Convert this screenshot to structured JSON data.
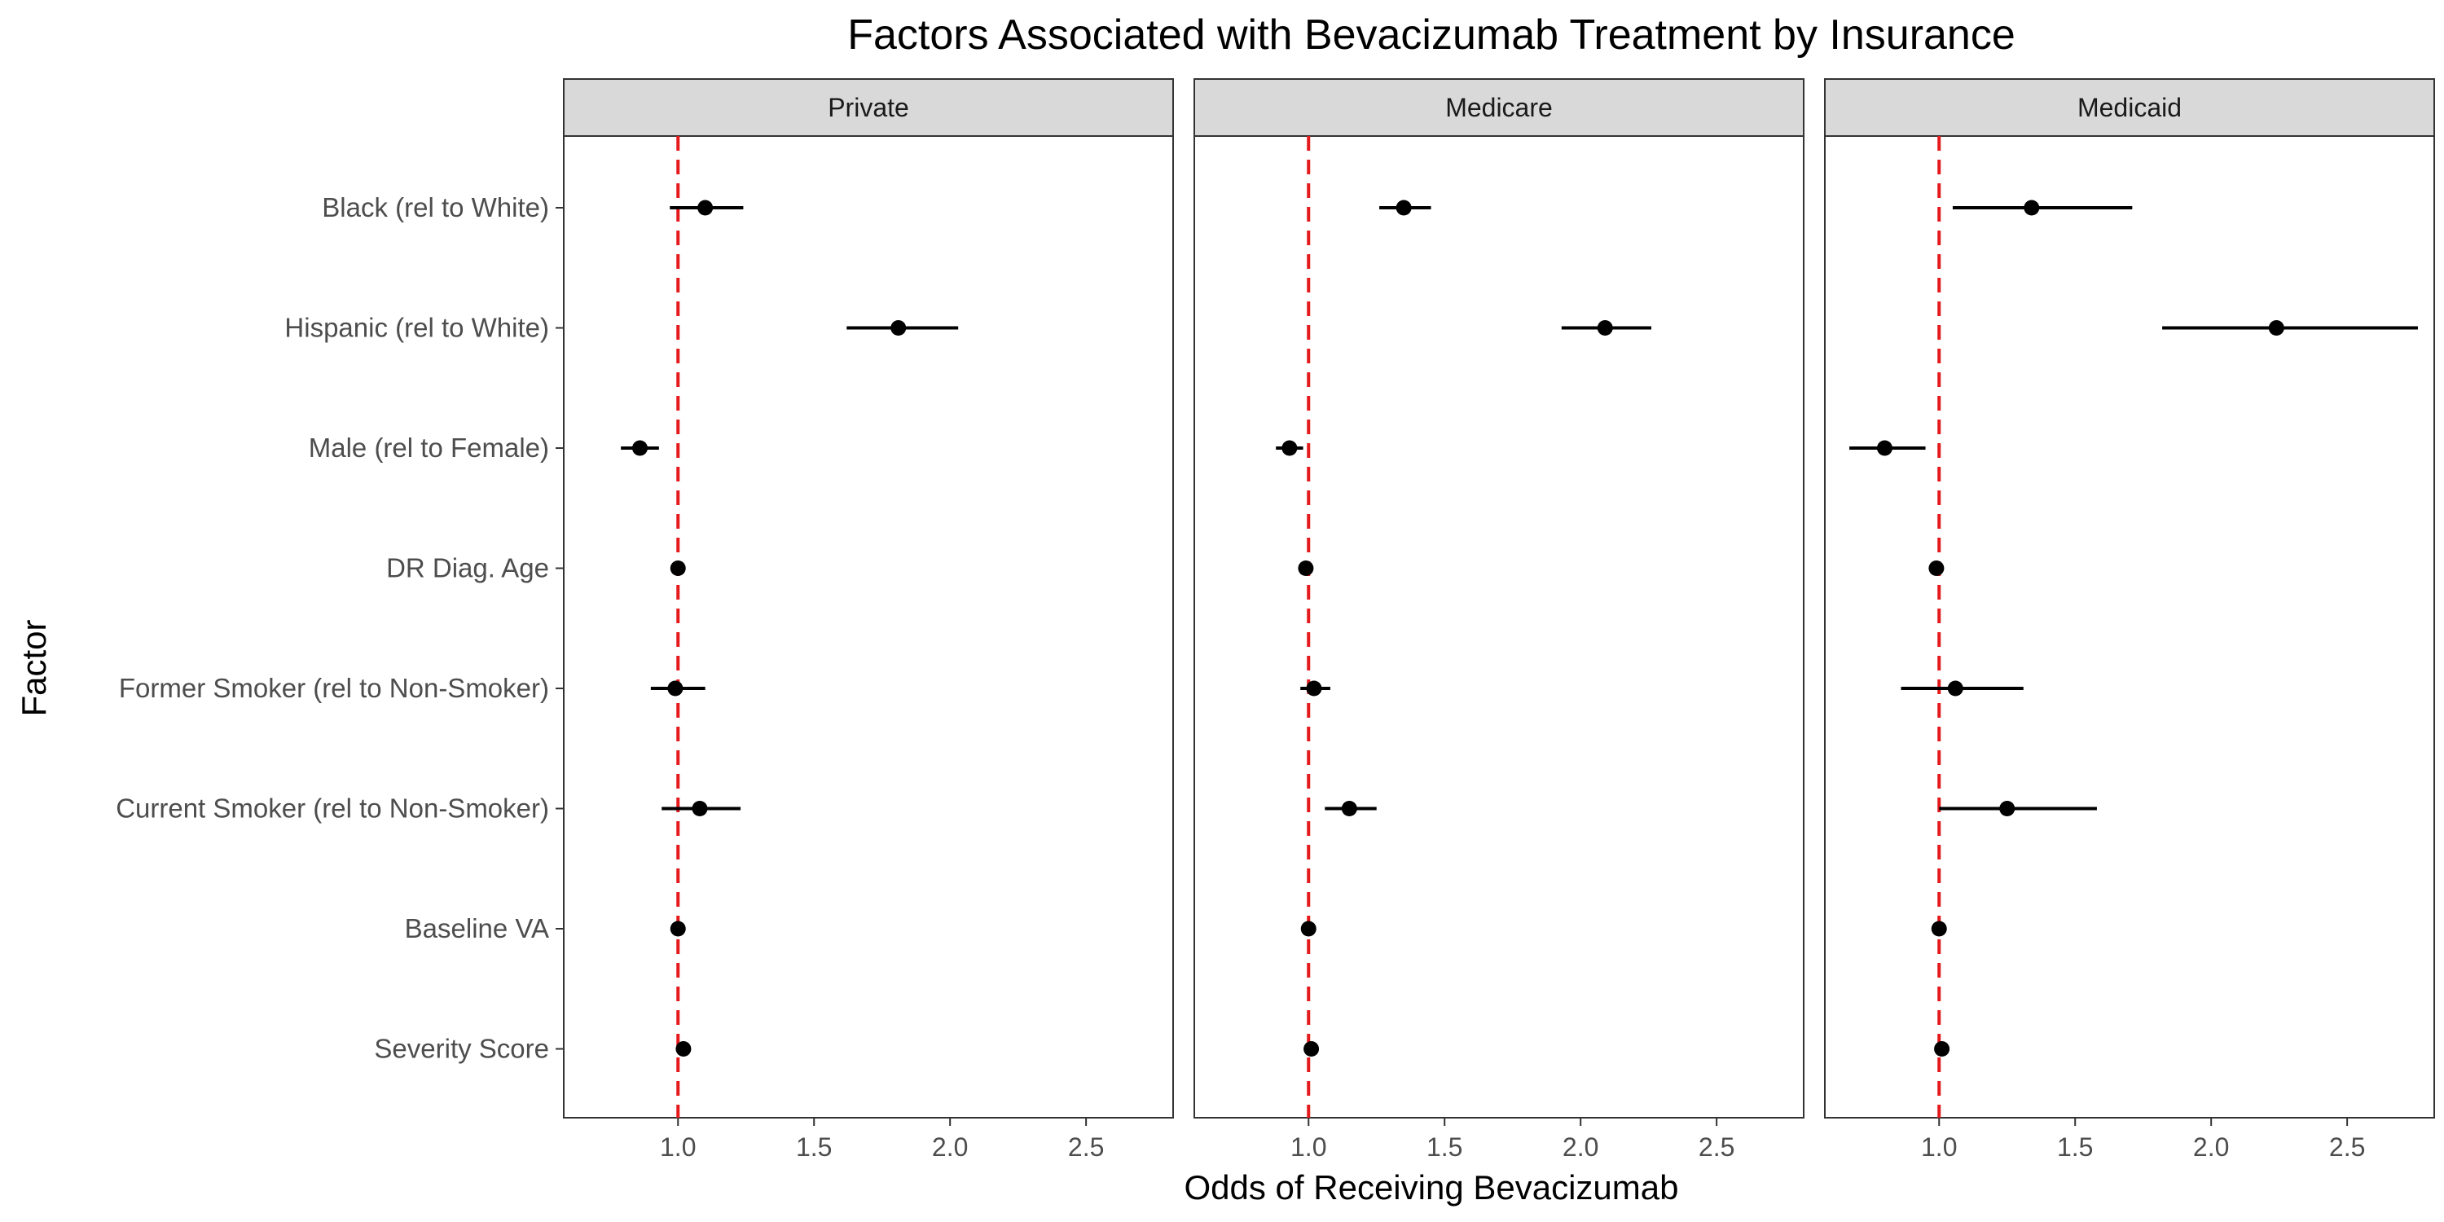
{
  "chart_data": {
    "type": "forest",
    "title": "Factors Associated with Bevacizumab Treatment by Insurance",
    "xlabel": "Odds of Receiving Bevacizumab",
    "ylabel": "Factor",
    "xlim": [
      0.58,
      2.82
    ],
    "xticks": [
      1.0,
      1.5,
      2.0,
      2.5
    ],
    "xtick_labels": [
      "1.0",
      "1.5",
      "2.0",
      "2.5"
    ],
    "reference_line": 1.0,
    "reference_color": "#e41a1c",
    "point_color": "#000000",
    "grid": false,
    "factors": [
      "Black (rel to White)",
      "Hispanic (rel to White)",
      "Male (rel to Female)",
      "DR Diag. Age",
      "Former Smoker (rel to Non-Smoker)",
      "Current Smoker (rel to Non-Smoker)",
      "Baseline VA",
      "Severity Score"
    ],
    "panels": [
      {
        "name": "Private",
        "estimates": [
          1.1,
          1.81,
          0.86,
          1.0,
          0.99,
          1.08,
          1.0,
          1.02
        ],
        "lower": [
          0.97,
          1.62,
          0.79,
          0.99,
          0.9,
          0.94,
          0.99,
          1.01
        ],
        "upper": [
          1.24,
          2.03,
          0.93,
          1.01,
          1.1,
          1.23,
          1.01,
          1.03
        ]
      },
      {
        "name": "Medicare",
        "estimates": [
          1.35,
          2.09,
          0.93,
          0.99,
          1.02,
          1.15,
          1.0,
          1.01
        ],
        "lower": [
          1.26,
          1.93,
          0.88,
          0.98,
          0.97,
          1.06,
          0.99,
          1.0
        ],
        "upper": [
          1.45,
          2.26,
          0.98,
          1.0,
          1.08,
          1.25,
          1.01,
          1.02
        ]
      },
      {
        "name": "Medicaid",
        "estimates": [
          1.34,
          2.24,
          0.8,
          0.99,
          1.06,
          1.25,
          1.0,
          1.01
        ],
        "lower": [
          1.05,
          1.82,
          0.67,
          0.97,
          0.86,
          1.0,
          0.98,
          0.99
        ],
        "upper": [
          1.71,
          2.76,
          0.95,
          1.01,
          1.31,
          1.58,
          1.02,
          1.03
        ]
      }
    ]
  }
}
